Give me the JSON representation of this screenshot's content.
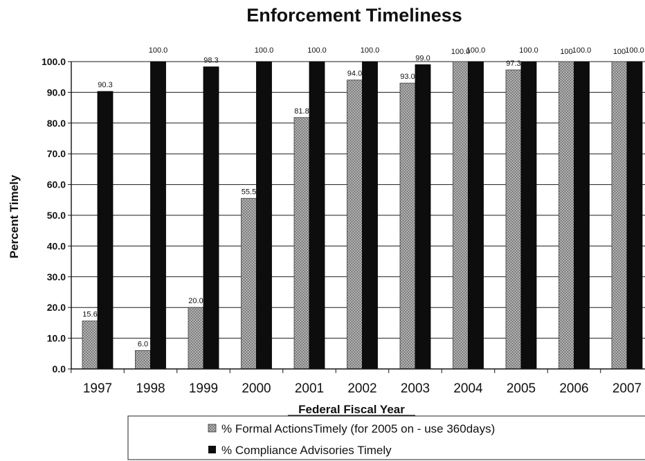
{
  "chart_data": {
    "type": "bar",
    "title": "Enforcement Timeliness",
    "xlabel": "Federal Fiscal Year",
    "ylabel": "Percent Timely",
    "ylim": [
      0,
      100
    ],
    "yticks": [
      "0.0",
      "10.0",
      "20.0",
      "30.0",
      "40.0",
      "50.0",
      "60.0",
      "70.0",
      "80.0",
      "90.0",
      "100.0"
    ],
    "categories": [
      "1997",
      "1998",
      "1999",
      "2000",
      "2001",
      "2002",
      "2003",
      "2004",
      "2005",
      "2006",
      "2007"
    ],
    "grid": "horizontal",
    "legend_position": "bottom",
    "series": [
      {
        "name": "% Formal ActionsTimely (for 2005 on - use 360days)",
        "values": [
          15.6,
          6.0,
          20.0,
          55.5,
          81.8,
          94.0,
          93.0,
          100.0,
          97.3,
          100,
          100
        ],
        "labels": [
          "15.6",
          "6.0",
          "20.0",
          "55.5",
          "81.8",
          "94.0",
          "93.0",
          "100.0",
          "97.3",
          "100",
          "100"
        ],
        "color": "#8c8c8c"
      },
      {
        "name": "% Compliance Advisories Timely",
        "values": [
          90.3,
          100.0,
          98.3,
          100.0,
          100.0,
          100.0,
          99.0,
          100.0,
          100.0,
          100.0,
          100.0
        ],
        "labels": [
          "90.3",
          "100.0",
          "98.3",
          "100.0",
          "100.0",
          "100.0",
          "99.0",
          "100.0",
          "100.0",
          "100.0",
          "100.0"
        ],
        "color": "#0d0d0d"
      }
    ]
  }
}
